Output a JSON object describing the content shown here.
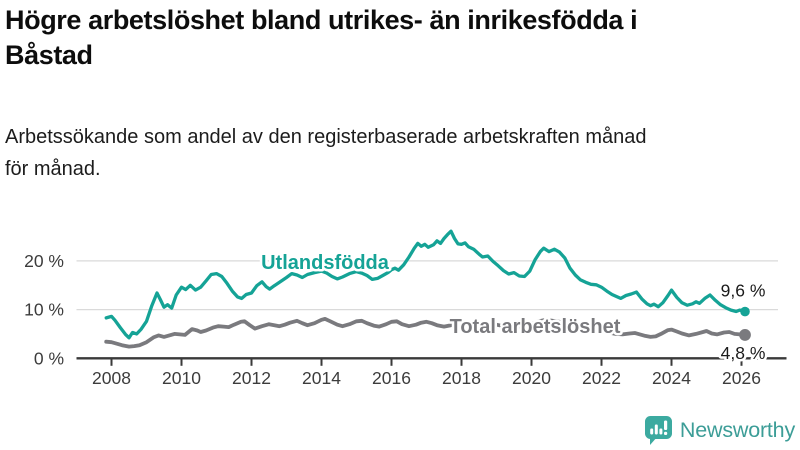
{
  "header": {
    "title_lines": [
      "Högre arbetslöshet bland utrikes- än inrikesfödda i",
      "Båstad"
    ],
    "subtitle_lines": [
      "Arbetssökande som andel av den registerbaserade arbetskraften månad",
      "för månad."
    ]
  },
  "branding": {
    "logo_text": "Newsworthy",
    "logo_icon": "bar-chart-speech-bubble-icon",
    "icon_color": "#3caaa0",
    "text_color": "#3c9d97"
  },
  "colors": {
    "accent_teal": "#15a396",
    "neutral_gray": "#7a7a7e",
    "axis": "#3a3a3a",
    "grid": "#dadada"
  },
  "chart_data": {
    "type": "line",
    "title": "Högre arbetslöshet bland utrikes- än inrikesfödda i Båstad",
    "subtitle": "Arbetssökande som andel av den registerbaserade arbetskraften månad för månad.",
    "x_axis": {
      "ticks": [
        2008,
        2010,
        2012,
        2014,
        2016,
        2018,
        2020,
        2022,
        2024,
        2026
      ],
      "tick_labels": [
        "2008",
        "2010",
        "2012",
        "2014",
        "2016",
        "2018",
        "2020",
        "2022",
        "2024",
        "2026"
      ],
      "range": [
        2007.0,
        2027.3
      ]
    },
    "y_axis": {
      "ticks": [
        0,
        10,
        20
      ],
      "tick_labels": [
        "0 %",
        "10 %",
        "20 %"
      ],
      "range": [
        0,
        27
      ],
      "grid": true
    },
    "legend_position": "inline-labels",
    "series": [
      {
        "name": "Utlandsfödda",
        "color": "#15a396",
        "end_value": 9.6,
        "end_label": "9,6 %",
        "points": [
          [
            2007.85,
            8.3
          ],
          [
            2008.0,
            8.6
          ],
          [
            2008.1,
            7.8
          ],
          [
            2008.25,
            6.3
          ],
          [
            2008.4,
            4.9
          ],
          [
            2008.5,
            4.2
          ],
          [
            2008.6,
            5.3
          ],
          [
            2008.72,
            5.0
          ],
          [
            2008.85,
            6.0
          ],
          [
            2009.0,
            7.6
          ],
          [
            2009.15,
            10.8
          ],
          [
            2009.3,
            13.4
          ],
          [
            2009.4,
            12.0
          ],
          [
            2009.5,
            10.5
          ],
          [
            2009.6,
            11.0
          ],
          [
            2009.72,
            10.3
          ],
          [
            2009.85,
            13.0
          ],
          [
            2010.0,
            14.6
          ],
          [
            2010.12,
            14.1
          ],
          [
            2010.25,
            15.0
          ],
          [
            2010.4,
            14.0
          ],
          [
            2010.55,
            14.6
          ],
          [
            2010.7,
            15.9
          ],
          [
            2010.85,
            17.2
          ],
          [
            2011.0,
            17.4
          ],
          [
            2011.15,
            16.8
          ],
          [
            2011.3,
            15.4
          ],
          [
            2011.45,
            13.8
          ],
          [
            2011.6,
            12.6
          ],
          [
            2011.72,
            12.3
          ],
          [
            2011.85,
            13.1
          ],
          [
            2012.0,
            13.4
          ],
          [
            2012.15,
            14.9
          ],
          [
            2012.3,
            15.7
          ],
          [
            2012.42,
            14.7
          ],
          [
            2012.52,
            14.2
          ],
          [
            2012.65,
            14.9
          ],
          [
            2012.8,
            15.6
          ],
          [
            2013.0,
            16.6
          ],
          [
            2013.15,
            17.4
          ],
          [
            2013.3,
            17.1
          ],
          [
            2013.45,
            16.6
          ],
          [
            2013.6,
            17.2
          ],
          [
            2013.8,
            17.6
          ],
          [
            2014.0,
            17.9
          ],
          [
            2014.15,
            17.5
          ],
          [
            2014.3,
            16.8
          ],
          [
            2014.45,
            16.3
          ],
          [
            2014.6,
            16.7
          ],
          [
            2014.8,
            17.4
          ],
          [
            2015.0,
            17.8
          ],
          [
            2015.15,
            17.5
          ],
          [
            2015.3,
            17.0
          ],
          [
            2015.45,
            16.2
          ],
          [
            2015.6,
            16.4
          ],
          [
            2015.75,
            17.0
          ],
          [
            2015.9,
            17.6
          ],
          [
            2016.0,
            18.2
          ],
          [
            2016.1,
            18.5
          ],
          [
            2016.2,
            18.1
          ],
          [
            2016.35,
            19.2
          ],
          [
            2016.5,
            20.8
          ],
          [
            2016.65,
            22.6
          ],
          [
            2016.75,
            23.6
          ],
          [
            2016.85,
            23.0
          ],
          [
            2016.95,
            23.4
          ],
          [
            2017.05,
            22.8
          ],
          [
            2017.2,
            23.3
          ],
          [
            2017.3,
            24.1
          ],
          [
            2017.4,
            23.6
          ],
          [
            2017.5,
            24.6
          ],
          [
            2017.6,
            25.4
          ],
          [
            2017.7,
            26.1
          ],
          [
            2017.8,
            24.6
          ],
          [
            2017.9,
            23.5
          ],
          [
            2018.0,
            23.4
          ],
          [
            2018.1,
            23.7
          ],
          [
            2018.2,
            22.9
          ],
          [
            2018.35,
            22.4
          ],
          [
            2018.5,
            21.4
          ],
          [
            2018.6,
            20.8
          ],
          [
            2018.75,
            21.0
          ],
          [
            2018.9,
            19.9
          ],
          [
            2019.05,
            19.0
          ],
          [
            2019.2,
            18.0
          ],
          [
            2019.35,
            17.3
          ],
          [
            2019.5,
            17.6
          ],
          [
            2019.65,
            16.9
          ],
          [
            2019.8,
            16.8
          ],
          [
            2019.95,
            17.9
          ],
          [
            2020.1,
            20.2
          ],
          [
            2020.25,
            21.9
          ],
          [
            2020.35,
            22.6
          ],
          [
            2020.5,
            21.9
          ],
          [
            2020.65,
            22.4
          ],
          [
            2020.8,
            21.8
          ],
          [
            2020.95,
            20.6
          ],
          [
            2021.1,
            18.5
          ],
          [
            2021.25,
            17.1
          ],
          [
            2021.4,
            16.1
          ],
          [
            2021.55,
            15.6
          ],
          [
            2021.7,
            15.2
          ],
          [
            2021.85,
            15.1
          ],
          [
            2022.0,
            14.6
          ],
          [
            2022.15,
            13.8
          ],
          [
            2022.3,
            13.1
          ],
          [
            2022.45,
            12.6
          ],
          [
            2022.55,
            12.3
          ],
          [
            2022.7,
            12.9
          ],
          [
            2022.85,
            13.2
          ],
          [
            2023.0,
            13.6
          ],
          [
            2023.15,
            12.2
          ],
          [
            2023.3,
            11.2
          ],
          [
            2023.4,
            10.8
          ],
          [
            2023.5,
            11.1
          ],
          [
            2023.62,
            10.6
          ],
          [
            2023.75,
            11.4
          ],
          [
            2023.9,
            12.9
          ],
          [
            2024.0,
            14.0
          ],
          [
            2024.15,
            12.5
          ],
          [
            2024.3,
            11.4
          ],
          [
            2024.45,
            10.9
          ],
          [
            2024.6,
            11.2
          ],
          [
            2024.7,
            11.6
          ],
          [
            2024.8,
            11.3
          ],
          [
            2024.95,
            12.3
          ],
          [
            2025.1,
            13.0
          ],
          [
            2025.25,
            11.9
          ],
          [
            2025.4,
            11.0
          ],
          [
            2025.55,
            10.4
          ],
          [
            2025.7,
            9.9
          ],
          [
            2025.85,
            9.6
          ],
          [
            2025.95,
            9.9
          ],
          [
            2026.1,
            9.6
          ]
        ]
      },
      {
        "name": "Total arbetslöshet",
        "color": "#7a7a7e",
        "end_value": 4.8,
        "end_label": "4,8 %",
        "points": [
          [
            2007.85,
            3.4
          ],
          [
            2008.0,
            3.3
          ],
          [
            2008.15,
            3.0
          ],
          [
            2008.3,
            2.7
          ],
          [
            2008.5,
            2.4
          ],
          [
            2008.65,
            2.5
          ],
          [
            2008.8,
            2.7
          ],
          [
            2009.0,
            3.3
          ],
          [
            2009.2,
            4.3
          ],
          [
            2009.35,
            4.7
          ],
          [
            2009.5,
            4.4
          ],
          [
            2009.65,
            4.7
          ],
          [
            2009.8,
            5.0
          ],
          [
            2009.95,
            4.9
          ],
          [
            2010.1,
            4.8
          ],
          [
            2010.3,
            6.0
          ],
          [
            2010.45,
            5.7
          ],
          [
            2010.55,
            5.4
          ],
          [
            2010.7,
            5.7
          ],
          [
            2010.9,
            6.3
          ],
          [
            2011.05,
            6.6
          ],
          [
            2011.2,
            6.5
          ],
          [
            2011.35,
            6.4
          ],
          [
            2011.5,
            6.9
          ],
          [
            2011.7,
            7.5
          ],
          [
            2011.8,
            7.6
          ],
          [
            2011.95,
            6.8
          ],
          [
            2012.1,
            6.1
          ],
          [
            2012.3,
            6.6
          ],
          [
            2012.5,
            7.0
          ],
          [
            2012.65,
            6.8
          ],
          [
            2012.8,
            6.6
          ],
          [
            2012.95,
            6.9
          ],
          [
            2013.1,
            7.3
          ],
          [
            2013.3,
            7.7
          ],
          [
            2013.45,
            7.2
          ],
          [
            2013.6,
            6.8
          ],
          [
            2013.8,
            7.2
          ],
          [
            2014.0,
            7.9
          ],
          [
            2014.1,
            8.1
          ],
          [
            2014.25,
            7.6
          ],
          [
            2014.45,
            6.9
          ],
          [
            2014.6,
            6.6
          ],
          [
            2014.8,
            7.0
          ],
          [
            2015.0,
            7.6
          ],
          [
            2015.15,
            7.7
          ],
          [
            2015.3,
            7.2
          ],
          [
            2015.5,
            6.7
          ],
          [
            2015.65,
            6.5
          ],
          [
            2015.85,
            7.0
          ],
          [
            2016.0,
            7.5
          ],
          [
            2016.15,
            7.6
          ],
          [
            2016.3,
            7.0
          ],
          [
            2016.5,
            6.6
          ],
          [
            2016.7,
            6.9
          ],
          [
            2016.85,
            7.3
          ],
          [
            2017.0,
            7.5
          ],
          [
            2017.15,
            7.2
          ],
          [
            2017.3,
            6.8
          ],
          [
            2017.5,
            6.5
          ],
          [
            2017.7,
            6.8
          ],
          [
            2017.9,
            7.2
          ],
          [
            2018.05,
            7.4
          ],
          [
            2018.2,
            7.0
          ],
          [
            2018.4,
            6.6
          ],
          [
            2018.6,
            6.4
          ],
          [
            2018.8,
            6.7
          ],
          [
            2019.0,
            6.9
          ],
          [
            2019.2,
            6.6
          ],
          [
            2019.4,
            6.2
          ],
          [
            2019.6,
            6.4
          ],
          [
            2019.8,
            6.8
          ],
          [
            2020.0,
            7.0
          ],
          [
            2020.2,
            7.6
          ],
          [
            2020.4,
            7.9
          ],
          [
            2020.6,
            7.7
          ],
          [
            2020.8,
            7.5
          ],
          [
            2021.0,
            7.4
          ],
          [
            2021.2,
            7.0
          ],
          [
            2021.4,
            6.5
          ],
          [
            2021.6,
            6.1
          ],
          [
            2021.8,
            5.9
          ],
          [
            2022.0,
            5.7
          ],
          [
            2022.2,
            5.3
          ],
          [
            2022.4,
            5.0
          ],
          [
            2022.6,
            4.9
          ],
          [
            2022.8,
            5.1
          ],
          [
            2022.95,
            5.2
          ],
          [
            2023.1,
            4.9
          ],
          [
            2023.25,
            4.6
          ],
          [
            2023.4,
            4.4
          ],
          [
            2023.55,
            4.5
          ],
          [
            2023.7,
            5.0
          ],
          [
            2023.9,
            5.8
          ],
          [
            2024.0,
            5.9
          ],
          [
            2024.15,
            5.5
          ],
          [
            2024.3,
            5.1
          ],
          [
            2024.5,
            4.7
          ],
          [
            2024.7,
            5.0
          ],
          [
            2024.9,
            5.4
          ],
          [
            2025.0,
            5.6
          ],
          [
            2025.15,
            5.1
          ],
          [
            2025.3,
            4.9
          ],
          [
            2025.5,
            5.3
          ],
          [
            2025.65,
            5.4
          ],
          [
            2025.8,
            5.0
          ],
          [
            2025.95,
            4.9
          ],
          [
            2026.1,
            4.8
          ]
        ]
      }
    ],
    "annotations": [
      {
        "text": "Utlandsfödda",
        "x": 2014.1,
        "y": 19.8,
        "series": 0
      },
      {
        "text": "Total arbetslöshet",
        "x": 2020.1,
        "y": 6.6,
        "series": 1
      }
    ]
  }
}
